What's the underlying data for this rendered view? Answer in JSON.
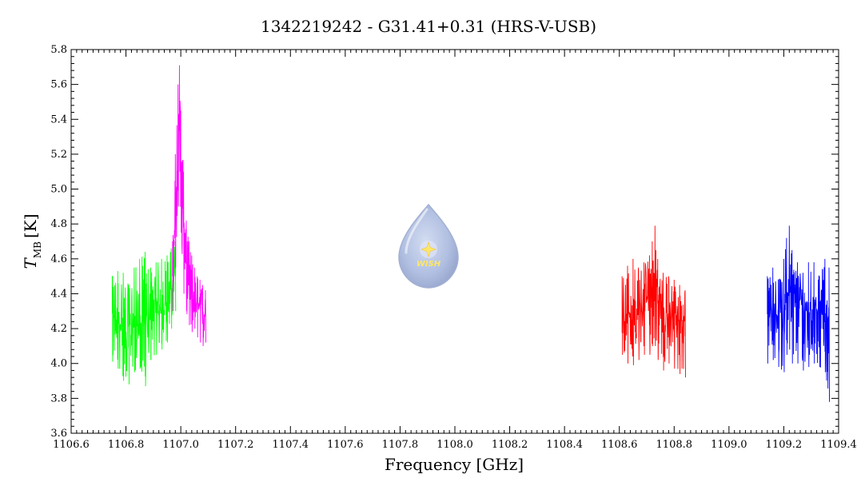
{
  "chart_data": {
    "type": "line",
    "title": "1342219242 - G31.41+0.31 (HRS-V-USB)",
    "xlabel": "Frequency [GHz]",
    "ylabel_main": "T",
    "ylabel_sub": "MB",
    "ylabel_unit": "[K]",
    "xlim": [
      1106.6,
      1109.4
    ],
    "ylim": [
      3.6,
      5.8
    ],
    "grid": false,
    "x_ticks": [
      "1106.6",
      "1106.8",
      "1107.0",
      "1107.2",
      "1107.4",
      "1107.6",
      "1107.8",
      "1108.0",
      "1108.2",
      "1108.4",
      "1108.6",
      "1108.8",
      "1109.0",
      "1109.2",
      "1109.4"
    ],
    "y_ticks": [
      "3.6",
      "3.8",
      "4.0",
      "4.2",
      "4.4",
      "4.6",
      "4.8",
      "5.0",
      "5.2",
      "5.4",
      "5.6",
      "5.8"
    ],
    "series": [
      {
        "color": "#00ff00",
        "x": [
          1106.75,
          1106.77,
          1106.79,
          1106.81,
          1106.83,
          1106.85,
          1106.87,
          1106.89,
          1106.91,
          1106.93,
          1106.95,
          1106.965,
          1106.98
        ],
        "y_mean": [
          4.25,
          4.23,
          4.22,
          4.21,
          4.22,
          4.23,
          4.24,
          4.26,
          4.28,
          4.32,
          4.36,
          4.42,
          4.5
        ],
        "y_min": [
          4.01,
          3.97,
          3.9,
          3.88,
          3.95,
          3.97,
          3.87,
          4.02,
          4.05,
          4.08,
          4.12,
          4.2,
          4.3
        ],
        "y_max": [
          4.5,
          4.53,
          4.52,
          4.45,
          4.55,
          4.6,
          4.64,
          4.55,
          4.58,
          4.6,
          4.62,
          4.66,
          4.7
        ]
      },
      {
        "color": "#ff00ff",
        "x": [
          1106.97,
          1106.98,
          1106.99,
          1106.995,
          1107.0,
          1107.01,
          1107.02,
          1107.03,
          1107.04,
          1107.05,
          1107.06,
          1107.07,
          1107.08,
          1107.09
        ],
        "y_mean": [
          4.5,
          4.9,
          5.25,
          5.4,
          5.1,
          4.8,
          4.55,
          4.42,
          4.38,
          4.35,
          4.33,
          4.3,
          4.28,
          4.3
        ],
        "y_min": [
          4.3,
          4.55,
          4.9,
          5.1,
          4.75,
          4.4,
          4.3,
          4.22,
          4.18,
          4.2,
          4.15,
          4.12,
          4.1,
          4.12
        ],
        "y_max": [
          4.7,
          5.2,
          5.6,
          5.71,
          5.45,
          5.1,
          4.82,
          4.7,
          4.62,
          4.55,
          4.5,
          4.48,
          4.45,
          4.42
        ]
      },
      {
        "color": "#ff0000",
        "x": [
          1108.61,
          1108.63,
          1108.65,
          1108.67,
          1108.69,
          1108.71,
          1108.72,
          1108.73,
          1108.74,
          1108.76,
          1108.78,
          1108.8,
          1108.82,
          1108.84
        ],
        "y_mean": [
          4.27,
          4.28,
          4.3,
          4.29,
          4.32,
          4.38,
          4.45,
          4.42,
          4.35,
          4.3,
          4.28,
          4.26,
          4.25,
          4.24
        ],
        "y_min": [
          4.05,
          4.0,
          3.99,
          4.02,
          4.05,
          4.05,
          4.1,
          4.1,
          4.02,
          3.96,
          4.0,
          3.97,
          3.94,
          3.92
        ],
        "y_max": [
          4.5,
          4.56,
          4.6,
          4.55,
          4.58,
          4.62,
          4.7,
          4.79,
          4.6,
          4.52,
          4.5,
          4.48,
          4.45,
          4.42
        ]
      },
      {
        "color": "#0000ff",
        "x": [
          1109.14,
          1109.16,
          1109.18,
          1109.2,
          1109.21,
          1109.22,
          1109.23,
          1109.25,
          1109.27,
          1109.29,
          1109.31,
          1109.33,
          1109.35,
          1109.365
        ],
        "y_mean": [
          4.28,
          4.3,
          4.3,
          4.32,
          4.38,
          4.42,
          4.38,
          4.33,
          4.3,
          4.3,
          4.32,
          4.3,
          4.28,
          4.27
        ],
        "y_min": [
          4.0,
          4.02,
          3.98,
          3.95,
          4.05,
          4.08,
          4.0,
          4.0,
          3.96,
          3.98,
          4.0,
          3.98,
          3.95,
          3.78
        ],
        "y_max": [
          4.5,
          4.55,
          4.48,
          4.6,
          4.72,
          4.79,
          4.65,
          4.58,
          4.52,
          4.58,
          4.58,
          4.5,
          4.6,
          4.55
        ]
      }
    ]
  },
  "logo": {
    "text": "WISH",
    "star_color": "#ffe766",
    "drop_color": "#a7b8dd"
  }
}
